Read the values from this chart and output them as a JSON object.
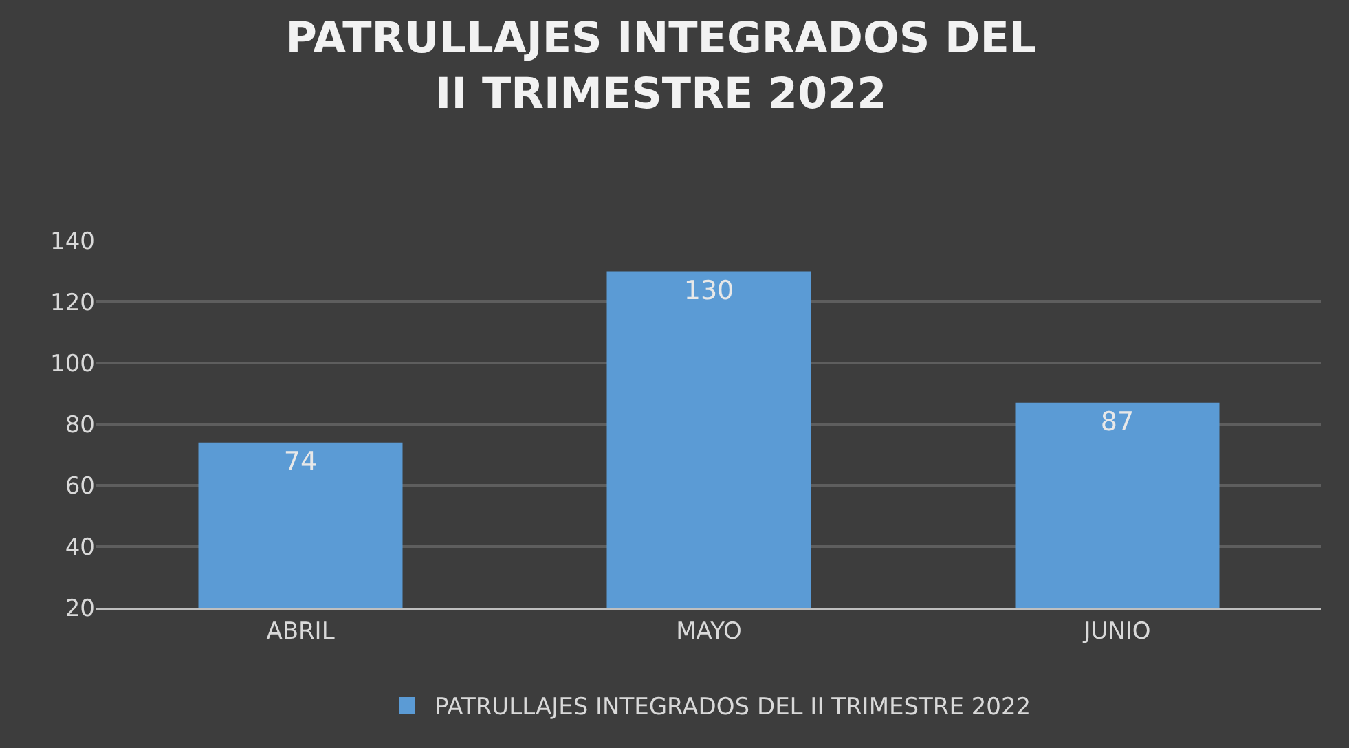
{
  "chart_data": {
    "type": "bar",
    "title": "PATRULLAJES INTEGRADOS DEL\nII TRIMESTRE 2022",
    "categories": [
      "ABRIL",
      "MAYO",
      "JUNIO"
    ],
    "series": [
      {
        "name": "PATRULLAJES INTEGRADOS DEL II TRIMESTRE 2022",
        "color": "#5b9bd5",
        "values": [
          74,
          130,
          87
        ]
      }
    ],
    "ylim": [
      20,
      140
    ],
    "yticks": [
      20,
      40,
      60,
      80,
      100,
      120,
      140
    ],
    "grid": "y",
    "legend": "bottom",
    "data_labels": true
  }
}
